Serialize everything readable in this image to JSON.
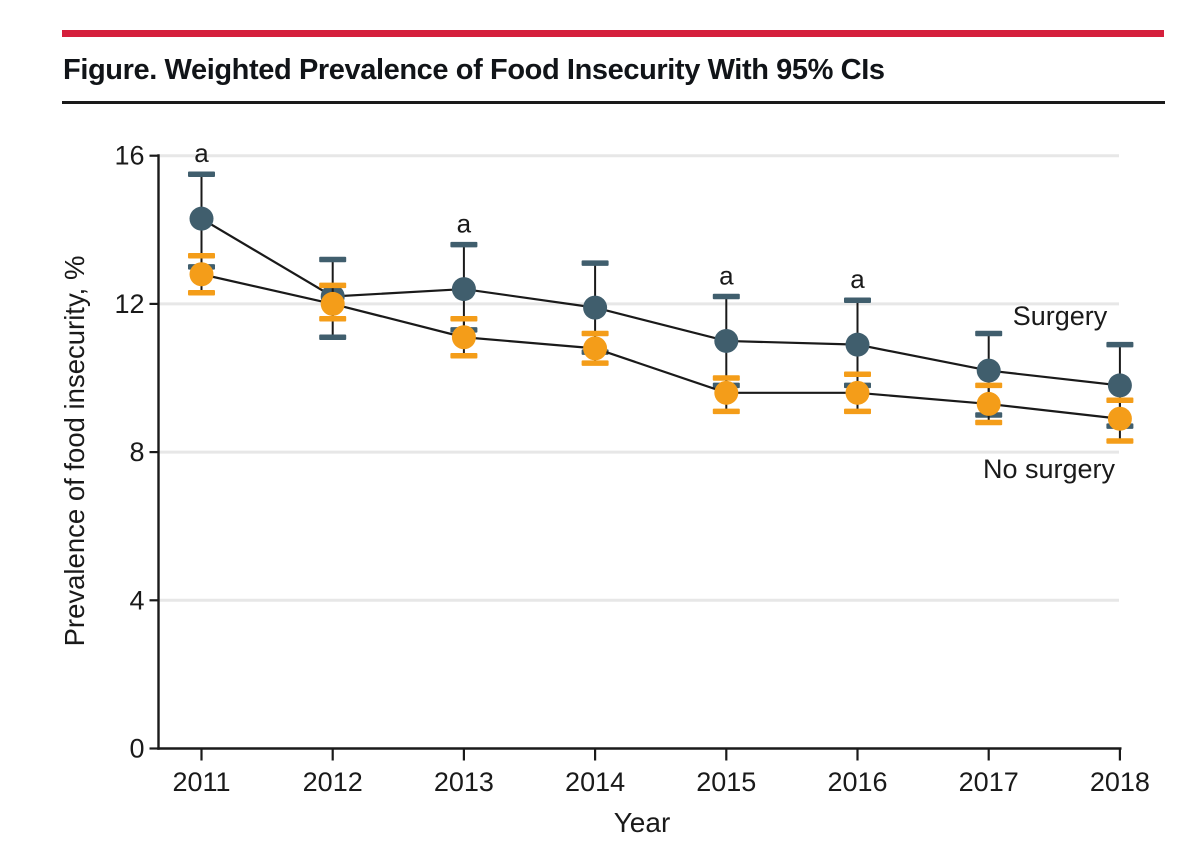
{
  "figure": {
    "title": "Figure. Weighted Prevalence of Food Insecurity With 95% CIs"
  },
  "colors": {
    "accent_red": "#D51F3C",
    "rule_black": "#1A1A1A",
    "axis_text": "#1A1A1A",
    "gridline": "#E7E7E7",
    "connector_line": "#1A1A1A"
  },
  "chart_data": {
    "type": "line",
    "title": "Weighted Prevalence of Food Insecurity With 95% CIs",
    "xlabel": "Year",
    "ylabel": "Prevalence of food insecurity, %",
    "x": [
      2011,
      2012,
      2013,
      2014,
      2015,
      2016,
      2017,
      2018
    ],
    "ylim": [
      0,
      16
    ],
    "yticks": [
      0,
      4,
      8,
      12,
      16
    ],
    "grid": "horizontal",
    "error_bars": "95% CI",
    "significance_marker": "a",
    "legend_style": "direct-labels",
    "series": [
      {
        "name": "Surgery",
        "color": "#405E6D",
        "values": [
          14.3,
          12.2,
          12.4,
          11.9,
          11.0,
          10.9,
          10.2,
          9.8
        ],
        "ci_low": [
          13.0,
          11.1,
          11.3,
          10.7,
          9.8,
          9.8,
          9.0,
          8.7
        ],
        "ci_high": [
          15.5,
          13.2,
          13.6,
          13.1,
          12.2,
          12.1,
          11.2,
          10.9
        ],
        "sig_years": [
          2011,
          2013,
          2015,
          2016
        ]
      },
      {
        "name": "No surgery",
        "color": "#F49D19",
        "values": [
          12.8,
          12.0,
          11.1,
          10.8,
          9.6,
          9.6,
          9.3,
          8.9
        ],
        "ci_low": [
          12.3,
          11.6,
          10.6,
          10.4,
          9.1,
          9.1,
          8.8,
          8.3
        ],
        "ci_high": [
          13.3,
          12.5,
          11.6,
          11.2,
          10.0,
          10.1,
          9.8,
          9.4
        ],
        "sig_years": []
      }
    ]
  }
}
